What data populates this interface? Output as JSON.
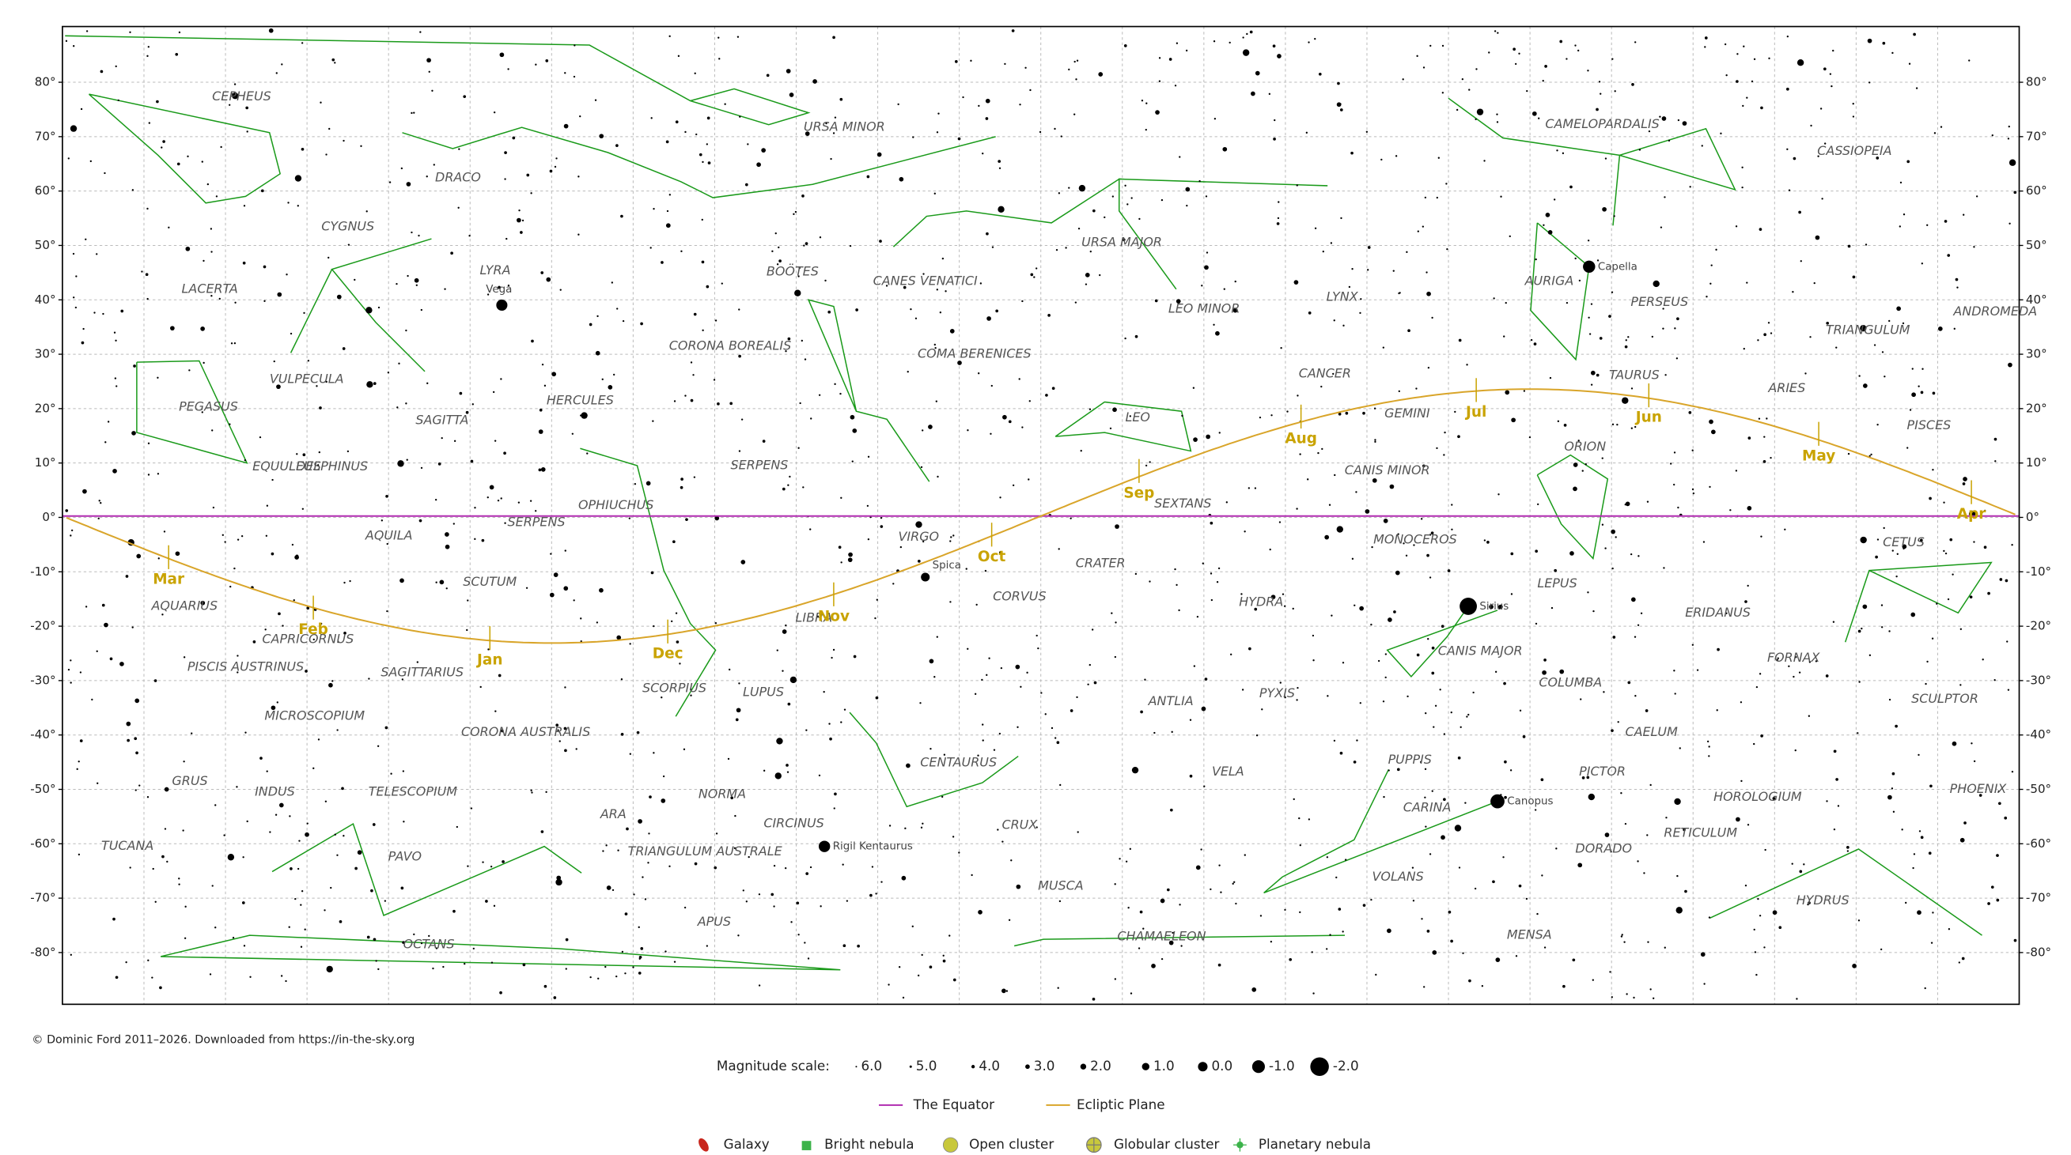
{
  "declination_labels": [
    "80°",
    "70°",
    "60°",
    "50°",
    "40°",
    "30°",
    "20°",
    "10°",
    "0°",
    "-10°",
    "-20°",
    "-30°",
    "-40°",
    "-50°",
    "-60°",
    "-70°",
    "-80°"
  ],
  "constellations": [
    "CEPHEUS",
    "URSA MINOR",
    "DRACO",
    "CYGNUS",
    "LYRA",
    "LACERTA",
    "BOÖTES",
    "CANES VENATICI",
    "URSA MAJOR",
    "LEO MINOR",
    "LYNX",
    "CAMELOPARDALIS",
    "CASSIOPEIA",
    "AURIGA",
    "PERSEUS",
    "ANDROMEDA",
    "TRIANGULUM",
    "CORONA BOREALIS",
    "COMA BERENICES",
    "VULPECULA",
    "PEGASUS",
    "HERCULES",
    "SAGITTA",
    "CANCER",
    "TAURUS",
    "ARIES",
    "LEO",
    "GEMINI",
    "PISCES",
    "EQUULEUS",
    "DELPHINUS",
    "SERPENS",
    "ORION",
    "CANIS MINOR",
    "OPHIUCHUS",
    "SEXTANS",
    "AQUILA",
    "SERPENS",
    "VIRGO",
    "MONOCEROS",
    "CETUS",
    "CRATER",
    "SCUTUM",
    "LEPUS",
    "CORVUS",
    "HYDRA",
    "AQUARIUS",
    "LIBRA",
    "ERIDANUS",
    "CAPRICORNUS",
    "CANIS MAJOR",
    "FORNAX",
    "PISCIS AUSTRINUS",
    "SAGITTARIUS",
    "SCORPIUS",
    "LUPUS",
    "COLUMBA",
    "PYXIS",
    "ANTLIA",
    "SCULPTOR",
    "MICROSCOPIUM",
    "CORONA AUSTRALIS",
    "CAELUM",
    "CENTAURUS",
    "PUPPIS",
    "VELA",
    "PICTOR",
    "GRUS",
    "INDUS",
    "TELESCOPIUM",
    "NORMA",
    "PHOENIX",
    "HOROLOGIUM",
    "CARINA",
    "ARA",
    "CIRCINUS",
    "CRUX",
    "RETICULUM",
    "TUCANA",
    "DORADO",
    "TRIANGULUM AUSTRALE",
    "PAVO",
    "VOLANS",
    "MUSCA",
    "HYDRUS",
    "APUS",
    "OCTANS",
    "CHAMAELEON",
    "MENSA"
  ],
  "months": [
    "Mar",
    "Feb",
    "Jan",
    "Dec",
    "Nov",
    "Oct",
    "Sep",
    "Aug",
    "Jul",
    "Jun",
    "May",
    "Apr"
  ],
  "named_stars": [
    "Vega",
    "Capella",
    "Spica",
    "Sirius",
    "Canopus",
    "Rigil Kentaurus"
  ],
  "copyright": "© Dominic Ford 2011–2026. Downloaded from https://in-the-sky.org",
  "legend": {
    "magnitude_title": "Magnitude scale:",
    "magnitudes": [
      "6.0",
      "5.0",
      "4.0",
      "3.0",
      "2.0",
      "1.0",
      "0.0",
      "-1.0",
      "-2.0"
    ],
    "lines": [
      "The Equator",
      "Ecliptic Plane"
    ],
    "objects": [
      "Galaxy",
      "Bright nebula",
      "Open cluster",
      "Globular cluster",
      "Planetary nebula"
    ]
  }
}
